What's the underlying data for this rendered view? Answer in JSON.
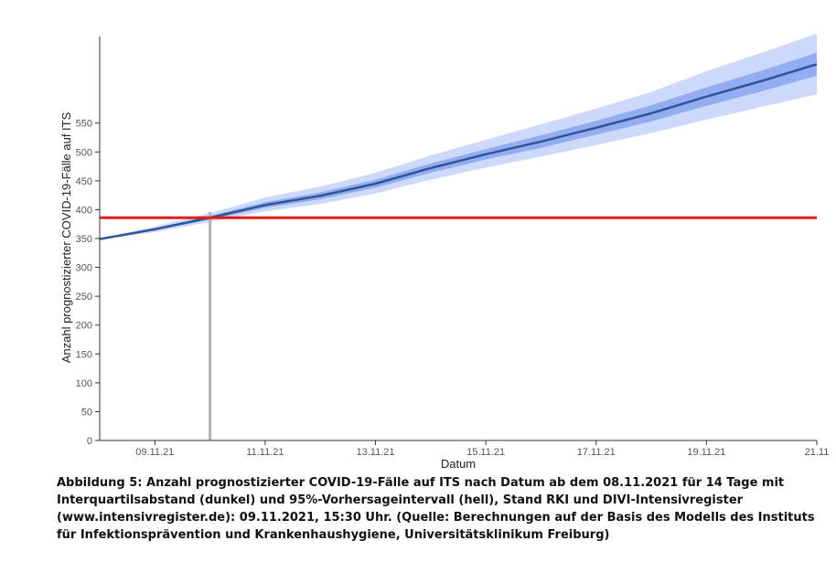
{
  "chart_data": {
    "type": "line",
    "xlabel": "Datum",
    "ylabel": "Anzahl prognostizierter COVID-19-Fälle auf ITS",
    "x_ticks": [
      "09.11.21",
      "11.11.21",
      "13.11.21",
      "15.11.21",
      "17.11.21",
      "19.11.21",
      "21.11"
    ],
    "y_ticks": [
      0,
      50,
      100,
      150,
      200,
      250,
      300,
      350,
      400,
      450,
      500,
      550
    ],
    "x_range": [
      "2021-11-08",
      "2021-11-21"
    ],
    "ylim": [
      0,
      700
    ],
    "grid": false,
    "reference_line": {
      "axis": "y",
      "value": 386,
      "color": "#e31a1c"
    },
    "reference_vline": {
      "axis": "x",
      "value": "2021-11-10",
      "color": "#b3b3b3"
    },
    "series": [
      {
        "x": [
          "2021-11-08",
          "2021-11-09",
          "2021-11-10",
          "2021-11-11",
          "2021-11-12",
          "2021-11-13",
          "2021-11-14",
          "2021-11-15",
          "2021-11-16",
          "2021-11-17",
          "2021-11-18",
          "2021-11-19",
          "2021-11-20",
          "2021-11-21"
        ],
        "median": [
          349,
          366,
          386,
          408,
          424,
          445,
          472,
          496,
          518,
          542,
          567,
          596,
          623,
          652
        ],
        "iqr_low": [
          349,
          364,
          383,
          403,
          418,
          438,
          464,
          487,
          507,
          530,
          553,
          580,
          605,
          632
        ],
        "iqr_high": [
          349,
          368,
          389,
          413,
          430,
          452,
          480,
          505,
          529,
          554,
          581,
          612,
          641,
          672
        ],
        "pi95_low": [
          349,
          361,
          379,
          397,
          410,
          428,
          452,
          473,
          492,
          512,
          533,
          556,
          578,
          600
        ],
        "pi95_high": [
          349,
          371,
          394,
          421,
          440,
          464,
          494,
          521,
          548,
          575,
          604,
          640,
          672,
          705
        ],
        "color": "#2f5597"
      }
    ],
    "colors": {
      "pi95": "#cdd9fb",
      "iqr": "#92adf0",
      "median": "#2f5597"
    }
  },
  "caption": "Abbildung 5: Anzahl prognostizierter COVID-19-Fälle auf ITS nach Datum ab dem 08.11.2021 für 14 Tage mit Interquartilsabstand (dunkel) und 95%-Vorhersageintervall (hell), Stand RKI und DIVI-Intensivregister (www.intensivregister.de): 09.11.2021, 15:30 Uhr. (Quelle: Berechnungen auf der Basis des Modells des Instituts für Infektionsprävention und Krankenhaushygiene, Universitätsklinikum Freiburg)"
}
